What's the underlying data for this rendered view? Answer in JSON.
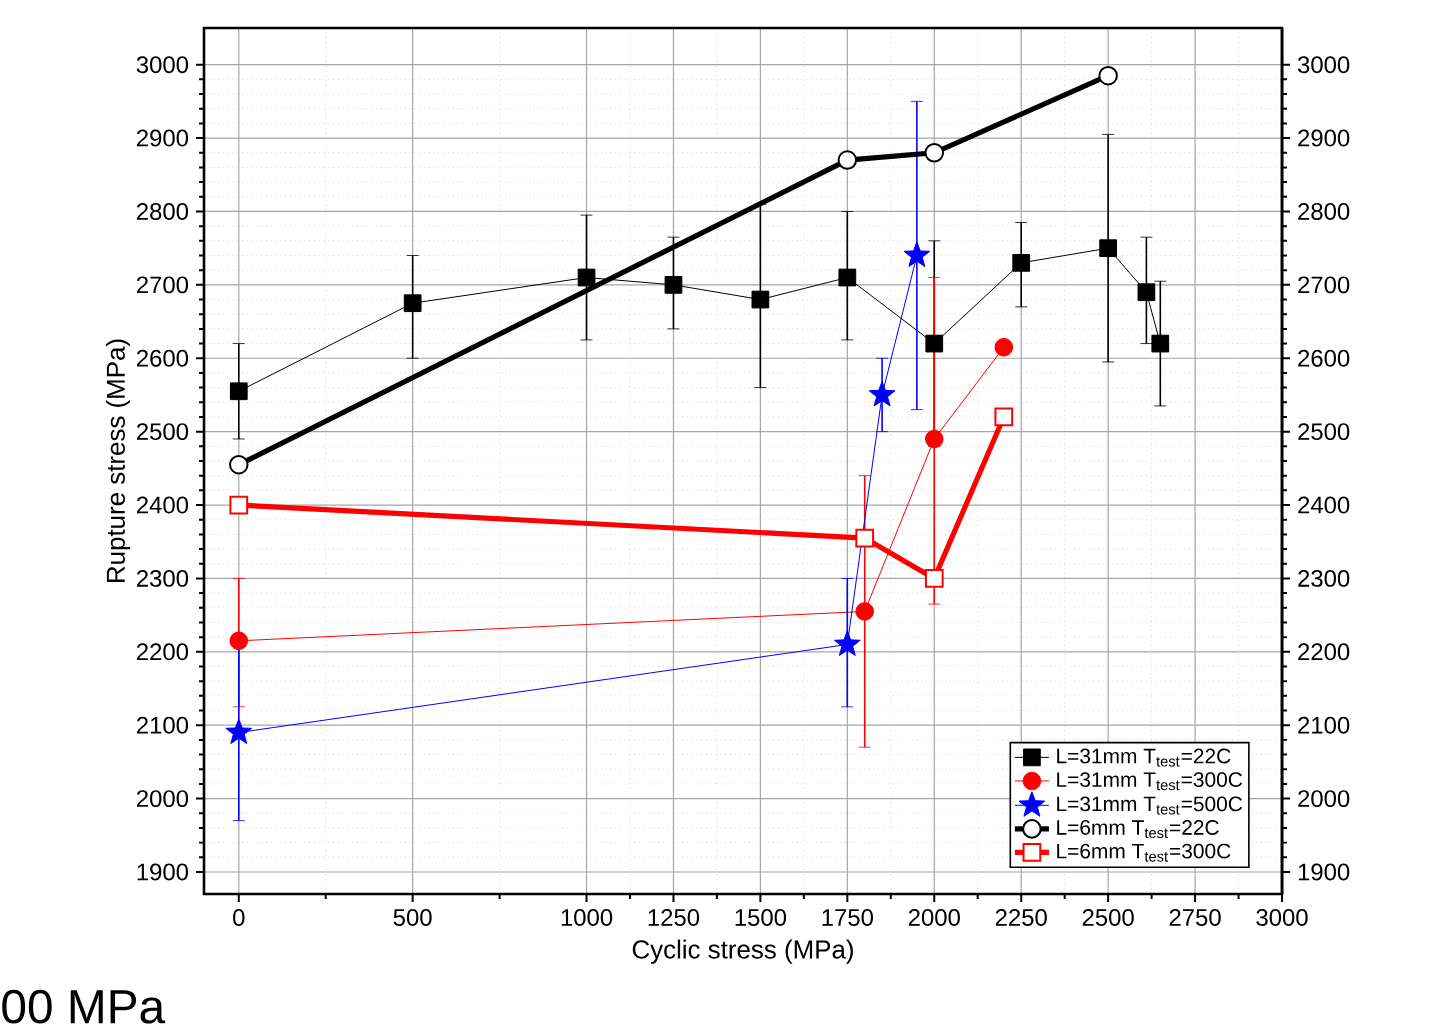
{
  "chart_data": {
    "type": "line",
    "xlabel": "Cyclic stress (MPa)",
    "ylabel": "Rupture stress (MPa)",
    "xlim": [
      -100,
      3000
    ],
    "xticks": [
      0,
      500,
      1000,
      1250,
      1500,
      1750,
      2000,
      2250,
      2500,
      2750,
      3000
    ],
    "ylim": [
      1870,
      3050
    ],
    "yticks": [
      1900,
      2000,
      2100,
      2200,
      2300,
      2400,
      2500,
      2600,
      2700,
      2800,
      2900,
      3000
    ],
    "y2lim": [
      1870,
      3050
    ],
    "y2ticks": [
      1900,
      2000,
      2100,
      2200,
      2300,
      2400,
      2500,
      2600,
      2700,
      2800,
      2900,
      3000
    ],
    "grid": true,
    "legend": "bottom right",
    "line_style": "solid",
    "annotations": [
      "00 MPa"
    ],
    "series": [
      {
        "name": "L=31mm T$_{test}$=22C",
        "color": "#000000",
        "marker": "square",
        "x": [
          0,
          500,
          1000,
          1250,
          1500,
          1750,
          2000,
          2250,
          2500,
          2610,
          2650
        ],
        "values": [
          2555,
          2675,
          2710,
          2700,
          2680,
          2710,
          2620,
          2730,
          2750,
          2690,
          2620
        ],
        "errors": [
          [
            2490,
            2620
          ],
          [
            2600,
            2740
          ],
          [
            2625,
            2795
          ],
          [
            2640,
            2765
          ],
          [
            2560,
            2810
          ],
          [
            2625,
            2800
          ],
          [
            2480,
            2760
          ],
          [
            2670,
            2785
          ],
          [
            2595,
            2905
          ],
          [
            2620,
            2765
          ],
          [
            2535,
            2705
          ]
        ]
      },
      {
        "name": "L=31mm T$_{test}$=300C",
        "color": "#ff0000",
        "marker": "circle",
        "x": [
          0,
          1800,
          2000,
          2200
        ],
        "values": [
          2215,
          2255,
          2490,
          2615
        ],
        "errors": [
          [
            2125,
            2300
          ],
          [
            2070,
            2440
          ],
          [
            2265,
            2710
          ],
          null
        ]
      },
      {
        "name": "L=31mm T$_{test}$=500C",
        "color": "#0000ff",
        "marker": "star",
        "x": [
          0,
          1750,
          1850,
          1950
        ],
        "values": [
          2090,
          2210,
          2550,
          2740
        ],
        "errors": [
          [
            1970,
            2210
          ],
          [
            2125,
            2300
          ],
          [
            2500,
            2600
          ],
          [
            2530,
            2950
          ]
        ]
      },
      {
        "name": "L=6mm T$_{test}$=22C",
        "color": "#000000",
        "marker": "circle",
        "x": [
          0,
          1750,
          2000,
          2500
        ],
        "values": [
          2455,
          2870,
          2880,
          2985
        ]
      },
      {
        "name": "L=6mm T$_{test}$=300C",
        "color": "#ff0000",
        "marker": "square",
        "x": [
          0,
          1800,
          2000,
          2200
        ],
        "values": [
          2400,
          2355,
          2300,
          2520
        ]
      }
    ]
  }
}
